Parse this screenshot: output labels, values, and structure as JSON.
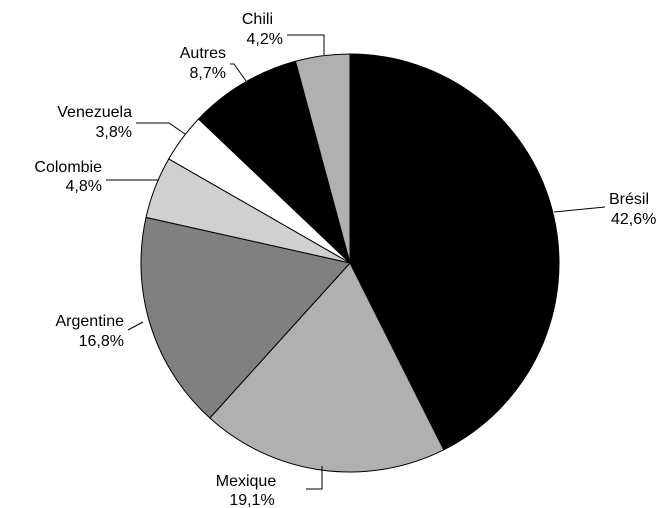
{
  "chart_data": {
    "type": "pie",
    "title": "",
    "start": "12 o'clock",
    "direction": "clockwise",
    "slices": [
      {
        "label": "Brésil",
        "value": 42.6,
        "value_label": "42,6%",
        "color": "#000000"
      },
      {
        "label": "Mexique",
        "value": 19.1,
        "value_label": "19,1%",
        "color": "#b0b0b0"
      },
      {
        "label": "Argentine",
        "value": 16.8,
        "value_label": "16,8%",
        "color": "#808080"
      },
      {
        "label": "Colombie",
        "value": 4.8,
        "value_label": "4,8%",
        "color": "#d0d0d0"
      },
      {
        "label": "Venezuela",
        "value": 3.8,
        "value_label": "3,8%",
        "color": "#ffffff"
      },
      {
        "label": "Autres",
        "value": 8.7,
        "value_label": "8,7%",
        "color": "#000000"
      },
      {
        "label": "Chili",
        "value": 4.2,
        "value_label": "4,2%",
        "color": "#b0b0b0"
      }
    ]
  }
}
